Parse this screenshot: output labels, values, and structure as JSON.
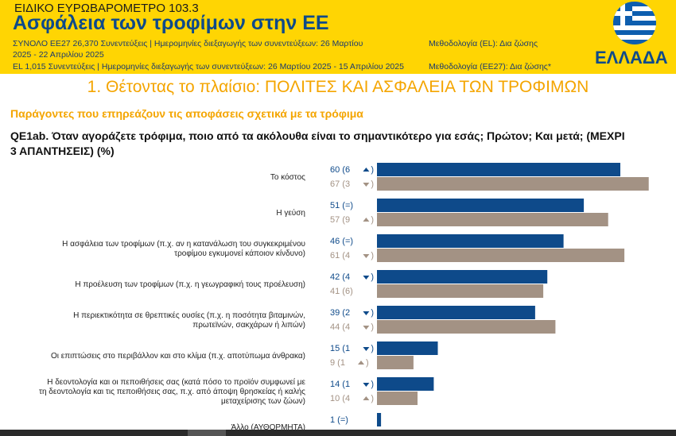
{
  "header": {
    "survey": "ΕΙΔΙΚΟ ΕΥΡΩΒΑΡΟΜΕΤΡΟ 103.3",
    "title": "Ασφάλεια των τροφίμων στην ΕΕ",
    "line1": "ΣΥΝΟΛΟ ΕΕ27 26,370 Συνεντεύξεις | Ημερομηνίες διεξαγωγής των συνεντεύξεων: 26 Μαρτίου",
    "line1_method": "Μεθοδολογία (EL): Δια ζώσης",
    "line2": "2025 - 22 Απριλίου 2025",
    "line3": "EL 1,015 Συνεντεύξεις | Ημερομηνίες διεξαγωγής των συνεντεύξεων: 26 Μαρτίου 2025 - 15 Απριλίου 2025",
    "line3_method": "Μεθοδολογία (ΕΕ27): Δια ζώσης*",
    "country": "ΕΛΛΑΔΑ"
  },
  "section_title": "1. Θέτοντας το πλαίσιο: ΠΟΛΙΤΕΣ ΚΑΙ ΑΣΦΑΛΕΙΑ ΤΩΝ ΤΡΟΦΙΜΩΝ",
  "subtitle": "Παράγοντες που επηρεάζουν τις αποφάσεις σχετικά με τα τρόφιμα",
  "question_line1": "QE1ab. Όταν αγοράζετε τρόφιμα, ποιο από τα ακόλουθα είναι το σημαντικότερο για εσάς; Πρώτον; Και μετά; (ΜΕΧΡΙ",
  "question_line2": "3 ΑΠΑΝΤΗΣΕΙΣ) (%)",
  "colors": {
    "el": "#0e4a8a",
    "eu27": "#a39284",
    "header_bg": "#ffd503",
    "accent": "#f4a500",
    "up_arrow": "up-triangle-icon",
    "down_arrow": "down-triangle-icon"
  },
  "chart_data": {
    "type": "bar",
    "orientation": "horizontal",
    "xlim": [
      0,
      70
    ],
    "categories": [
      [
        "Το κόστος"
      ],
      [
        "Η γεύση"
      ],
      [
        "Η ασφάλεια των τροφίμων (π.χ. αν η κατανάλωση του συγκεκριμένου",
        "τροφίμου εγκυμονεί κάποιον κίνδυνο)"
      ],
      [
        "Η προέλευση των τροφίμων (π.χ. η γεωγραφική τους προέλευση)"
      ],
      [
        "Η περιεκτικότητα σε θρεπτικές ουσίες (π.χ. η ποσότητα βιταμινών,",
        "πρωτεϊνών, σακχάρων ή λιπών)"
      ],
      [
        "Οι επιπτώσεις στο περιβάλλον και στο κλίμα (π.χ. αποτύπωμα άνθρακα)"
      ],
      [
        "Η δεοντολογία και οι πεποιθήσεις σας (κατά πόσο το προϊόν συμφωνεί με",
        "τη δεοντολογία και τις πεποιθήσεις σας, π.χ. από άποψη θρησκείας ή καλής",
        "μεταχείρισης των ζώων)"
      ],
      [
        "Άλλο (ΑΥΘΟΡΜΗΤΑ)"
      ]
    ],
    "series": [
      {
        "values": [
          60,
          51,
          46,
          42,
          39,
          15,
          14,
          1
        ],
        "changes": [
          "6",
          "=",
          "=",
          "4",
          "2",
          "1",
          "1",
          "="
        ],
        "trend": [
          "up",
          "none",
          "none",
          "down",
          "down",
          "down",
          "down",
          "none"
        ]
      },
      {
        "values": [
          67,
          57,
          61,
          41,
          44,
          9,
          10,
          null
        ],
        "changes": [
          "3",
          "9",
          "4",
          "6",
          "4",
          "1",
          "4",
          null
        ],
        "trend": [
          "down",
          "up",
          "down",
          "none",
          "down",
          "up",
          "up",
          null
        ]
      }
    ]
  }
}
